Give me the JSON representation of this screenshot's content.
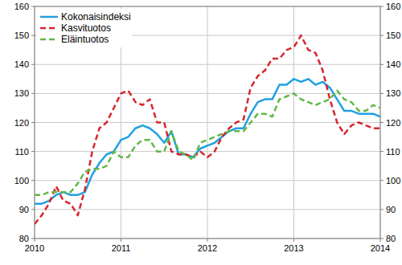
{
  "chart_data": {
    "type": "line",
    "x": [
      2010,
      2010.083,
      2010.167,
      2010.25,
      2010.333,
      2010.417,
      2010.5,
      2010.583,
      2010.667,
      2010.75,
      2010.833,
      2010.917,
      2011,
      2011.083,
      2011.167,
      2011.25,
      2011.333,
      2011.417,
      2011.5,
      2011.583,
      2011.667,
      2011.75,
      2011.833,
      2011.917,
      2012,
      2012.083,
      2012.167,
      2012.25,
      2012.333,
      2012.417,
      2012.5,
      2012.583,
      2012.667,
      2012.75,
      2012.833,
      2012.917,
      2013,
      2013.083,
      2013.167,
      2013.25,
      2013.333,
      2013.417,
      2013.5,
      2013.583,
      2013.667,
      2013.75,
      2013.833,
      2013.917,
      2014
    ],
    "series": [
      {
        "name": "Kokonaisindeksi",
        "color": "#22a0e0",
        "line_style": "solid",
        "values": [
          92,
          92,
          93,
          95,
          96,
          95,
          95,
          96,
          102,
          106,
          109,
          110,
          114,
          115,
          118,
          119,
          118,
          116,
          113,
          117,
          109,
          109,
          108,
          111,
          112,
          113,
          115,
          117,
          118,
          118,
          123,
          127,
          128,
          128,
          133,
          133,
          135,
          134,
          135,
          133,
          134,
          132,
          128,
          124,
          124,
          123,
          123,
          123,
          122
        ]
      },
      {
        "name": "Kasvituotos",
        "color": "#d7262d",
        "line_style": "dashed",
        "values": [
          85,
          88,
          92,
          98,
          93,
          92,
          88,
          97,
          110,
          118,
          120,
          125,
          130,
          131,
          127,
          126,
          128,
          120,
          120,
          110,
          109,
          109,
          108,
          110,
          108,
          110,
          115,
          118,
          120,
          121,
          132,
          136,
          138,
          142,
          142,
          145,
          146,
          150,
          145,
          144,
          138,
          128,
          120,
          116,
          119,
          120,
          119,
          118,
          118
        ]
      },
      {
        "name": "Eläintuotos",
        "color": "#62b846",
        "line_style": "dashed",
        "values": [
          95,
          95,
          96,
          96,
          96,
          96,
          99,
          103,
          104,
          104,
          105,
          110,
          108,
          108,
          112,
          114,
          114,
          110,
          110,
          117,
          110,
          109,
          107,
          113,
          114,
          115,
          116,
          117,
          117,
          117,
          120,
          123,
          123,
          122,
          128,
          129,
          130,
          128,
          127,
          126,
          127,
          128,
          131,
          128,
          127,
          124,
          124,
          126,
          125
        ]
      }
    ],
    "xlim": [
      2010,
      2014
    ],
    "xticks": [
      2010,
      2011,
      2012,
      2013,
      2014
    ],
    "ylim": [
      80,
      160
    ],
    "yticks": [
      80,
      90,
      100,
      110,
      120,
      130,
      140,
      150,
      160
    ],
    "y2lim": [
      80,
      160
    ],
    "y2ticks": [
      80,
      90,
      100,
      110,
      120,
      130,
      140,
      150,
      160
    ],
    "grid": true,
    "legend": "upper left"
  }
}
